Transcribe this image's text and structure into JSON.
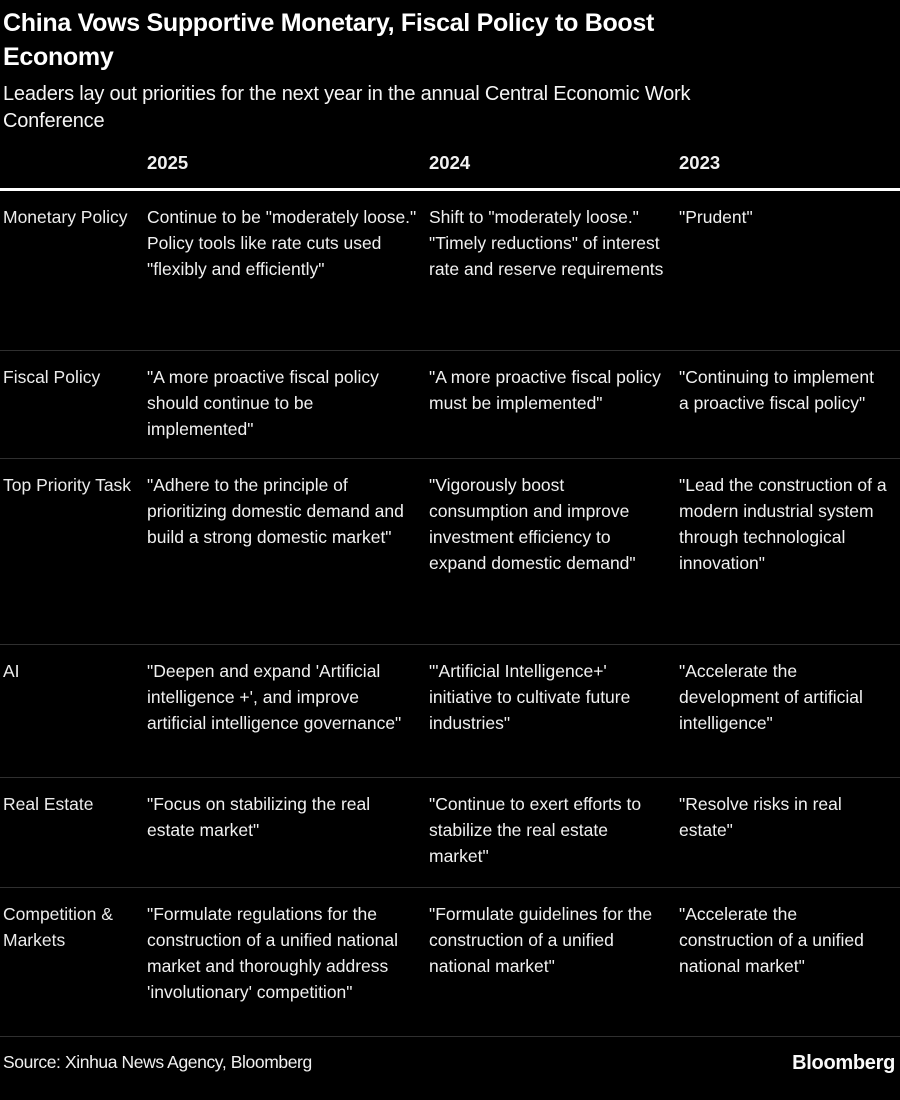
{
  "chart_data": {
    "type": "table",
    "title": "China Vows Supportive Monetary, Fiscal Policy to Boost Economy",
    "subtitle": "Leaders lay out priorities for the next year in the annual Central Economic Work Conference",
    "columns": [
      "",
      "2025",
      "2024",
      "2023"
    ],
    "rows": [
      [
        "Monetary Policy",
        "Continue to be \"moderately loose.\" Policy tools like rate cuts used \"flexibly and efficiently\"",
        "Shift to \"moderately loose.\" \"Timely reductions\" of interest rate and reserve requirements",
        "\"Prudent\""
      ],
      [
        "Fiscal Policy",
        "\"A more proactive fiscal policy should continue to be implemented\"",
        "\"A more proactive fiscal policy must be implemented\"",
        "\"Continuing to implement a proactive fiscal policy\""
      ],
      [
        "Top Priority Task",
        "\"Adhere to the principle of prioritizing domestic demand and build a strong domestic market\"",
        "\"Vigorously boost consumption and improve investment efficiency to expand domestic demand\"",
        "\"Lead the construction of a modern industrial system through technological innovation\""
      ],
      [
        "AI",
        "\"Deepen and expand 'Artificial intelligence +', and improve artificial intelligence governance\"",
        "\"'Artificial Intelligence+' initiative to cultivate future industries\"",
        "\"Accelerate the development of artificial intelligence\""
      ],
      [
        "Real Estate",
        "\"Focus on stabilizing the real estate market\"",
        "\"Continue to exert efforts to stabilize the real estate market\"",
        "\"Resolve risks in real estate\""
      ],
      [
        "Competition & Markets",
        "\"Formulate regulations for the construction of a unified national market and thoroughly address 'involutionary' competition\"",
        "\"Formulate guidelines for the construction of a unified national market\"",
        "\"Accelerate the construction of a unified national market\""
      ]
    ],
    "source": "Source: Xinhua News Agency, Bloomberg",
    "layout": "grid off, dark theme, header rule white, row dividers dark gray"
  },
  "footer": {
    "brand": "Bloomberg"
  },
  "colors": {
    "background": "#000000",
    "text": "#f1f1f1",
    "title": "#ffffff",
    "divider": "#2f2f2f",
    "header_rule": "#ffffff"
  }
}
